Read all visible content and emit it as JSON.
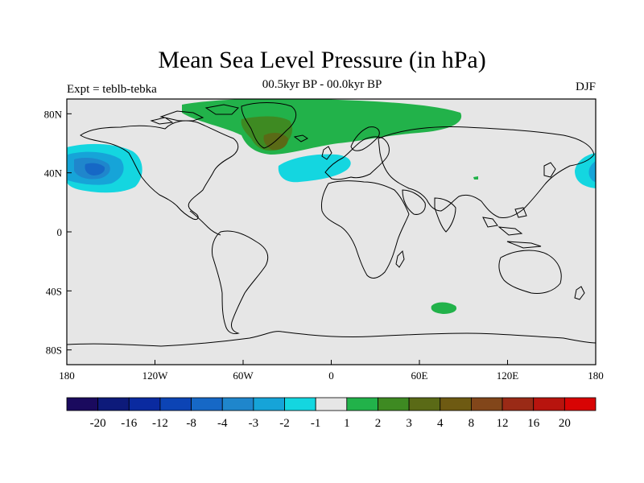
{
  "title": "Mean Sea Level Pressure (in hPa)",
  "subtitle": "00.5kyr BP - 00.0kyr BP",
  "left_label": "Expt = teblb-tebka",
  "right_label": "DJF",
  "map": {
    "lon_range": [
      -180,
      180
    ],
    "lat_range": [
      -90,
      90
    ],
    "background_color": "#e6e6e6",
    "x_ticks": [
      {
        "value": -180,
        "label": "180"
      },
      {
        "value": -120,
        "label": "120W"
      },
      {
        "value": -60,
        "label": "60W"
      },
      {
        "value": 0,
        "label": "0"
      },
      {
        "value": 60,
        "label": "60E"
      },
      {
        "value": 120,
        "label": "120E"
      },
      {
        "value": 180,
        "label": "180"
      }
    ],
    "y_ticks": [
      {
        "value": 80,
        "label": "80N"
      },
      {
        "value": 40,
        "label": "40N"
      },
      {
        "value": 0,
        "label": "0"
      },
      {
        "value": -40,
        "label": "40S"
      },
      {
        "value": -80,
        "label": "80S"
      }
    ]
  },
  "colorbar": {
    "colors": [
      "#1a0a5e",
      "#0d1a7a",
      "#0a2aa0",
      "#0c44b5",
      "#1668c6",
      "#1f86cc",
      "#16a4d8",
      "#14d6e0",
      "#e6e6e6",
      "#22b24a",
      "#3e8a22",
      "#5a6a16",
      "#6e5a12",
      "#82461a",
      "#9a2a16",
      "#b8140e",
      "#d80404"
    ],
    "labels": [
      "-20",
      "-16",
      "-12",
      "-8",
      "-4",
      "-3",
      "-2",
      "-1",
      "1",
      "2",
      "3",
      "4",
      "8",
      "12",
      "16",
      "20"
    ]
  }
}
